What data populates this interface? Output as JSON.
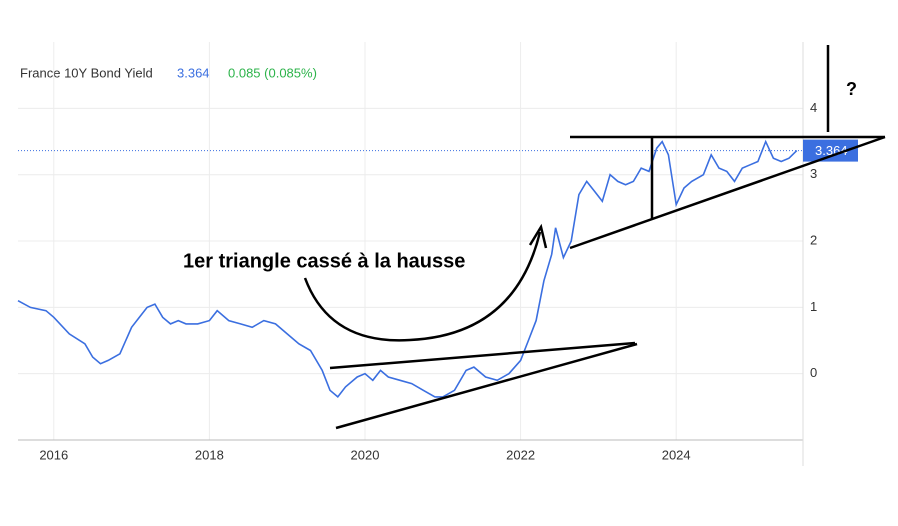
{
  "chart_data": {
    "type": "line",
    "title": "France 10Y Bond Yield",
    "price": "3.364",
    "change": "0.085 (0.085%)",
    "annotations": [
      "1er triangle cassé à la hausse",
      "?"
    ],
    "x": [
      2015.54,
      2015.7,
      2015.9,
      2016.0,
      2016.2,
      2016.4,
      2016.5,
      2016.6,
      2016.7,
      2016.85,
      2017.0,
      2017.1,
      2017.2,
      2017.3,
      2017.4,
      2017.5,
      2017.6,
      2017.7,
      2017.85,
      2018.0,
      2018.1,
      2018.25,
      2018.4,
      2018.55,
      2018.7,
      2018.85,
      2019.0,
      2019.15,
      2019.3,
      2019.45,
      2019.55,
      2019.65,
      2019.75,
      2019.9,
      2020.0,
      2020.1,
      2020.2,
      2020.3,
      2020.45,
      2020.6,
      2020.75,
      2020.9,
      2021.0,
      2021.15,
      2021.3,
      2021.4,
      2021.55,
      2021.7,
      2021.85,
      2022.0,
      2022.1,
      2022.2,
      2022.3,
      2022.4,
      2022.45,
      2022.55,
      2022.65,
      2022.75,
      2022.85,
      2022.95,
      2023.05,
      2023.15,
      2023.25,
      2023.35,
      2023.45,
      2023.55,
      2023.65,
      2023.75,
      2023.82,
      2023.9,
      2024.0,
      2024.1,
      2024.2,
      2024.35,
      2024.45,
      2024.55,
      2024.65,
      2024.75,
      2024.85,
      2024.95,
      2025.05,
      2025.15,
      2025.25,
      2025.35,
      2025.45,
      2025.55
    ],
    "series": [
      {
        "name": "France 10Y Bond Yield",
        "color": "#3b6fe0",
        "values": [
          1.1,
          1.0,
          0.95,
          0.85,
          0.6,
          0.45,
          0.25,
          0.15,
          0.2,
          0.3,
          0.7,
          0.85,
          1.0,
          1.05,
          0.85,
          0.75,
          0.8,
          0.75,
          0.75,
          0.8,
          0.95,
          0.8,
          0.75,
          0.7,
          0.8,
          0.75,
          0.6,
          0.45,
          0.35,
          0.05,
          -0.25,
          -0.35,
          -0.2,
          -0.05,
          0.0,
          -0.1,
          0.05,
          -0.05,
          -0.1,
          -0.15,
          -0.25,
          -0.35,
          -0.35,
          -0.25,
          0.05,
          0.1,
          -0.05,
          -0.1,
          0.0,
          0.2,
          0.5,
          0.8,
          1.4,
          1.8,
          2.2,
          1.75,
          2.0,
          2.7,
          2.9,
          2.75,
          2.6,
          3.0,
          2.9,
          2.85,
          2.9,
          3.1,
          3.05,
          3.4,
          3.5,
          3.3,
          2.55,
          2.8,
          2.9,
          3.0,
          3.3,
          3.1,
          3.05,
          2.9,
          3.1,
          3.15,
          3.2,
          3.5,
          3.25,
          3.2,
          3.25,
          3.364
        ]
      }
    ],
    "xlim": [
      2015.54,
      2025.63
    ],
    "xticks": [
      2016,
      2018,
      2020,
      2022,
      2024
    ],
    "ylim": [
      -1,
      4.7
    ],
    "yticks": [
      0,
      1,
      2,
      3,
      4
    ],
    "grid": true
  }
}
